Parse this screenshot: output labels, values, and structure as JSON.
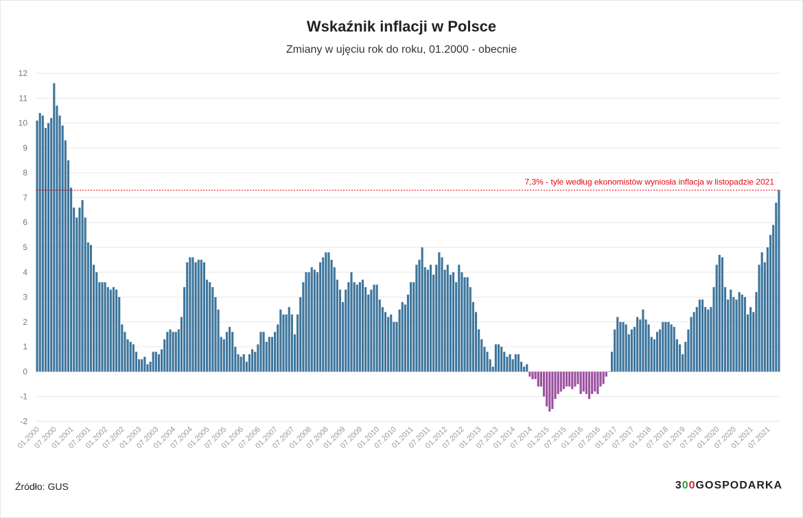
{
  "chart_data": {
    "type": "bar",
    "title": "Wskaźnik inflacji w Polsce",
    "subtitle": "Zmiany w ujęciu rok do roku, 01.2000 - obecnie",
    "ylim": [
      -2,
      12
    ],
    "yticks": [
      "12",
      "11",
      "10",
      "9",
      "8",
      "7",
      "6",
      "5",
      "4",
      "3",
      "2",
      "1",
      "0",
      "-1",
      "-2"
    ],
    "start_year": 2000,
    "start_month": 1,
    "x_tick_labels": [
      "01.2000",
      "07.2000",
      "01.2001",
      "07.2001",
      "01.2002",
      "07.2002",
      "01.2003",
      "07.2003",
      "01.2004",
      "07.2004",
      "01.2005",
      "07.2005",
      "01.2006",
      "07.2006",
      "01.2007",
      "07.2007",
      "01.2008",
      "07.2008",
      "01.2009",
      "07.2009",
      "01.2010",
      "07.2010",
      "01.2011",
      "07.2011",
      "01.2012",
      "07.2012",
      "01.2013",
      "07.2013",
      "01.2014",
      "07.2014",
      "01.2015",
      "07.2015",
      "01.2016",
      "07.2016",
      "01.2017",
      "07.2017",
      "01.2018",
      "07.2018",
      "01.2019",
      "07.2019",
      "01.2020",
      "07.2020",
      "01.2021",
      "07.2021"
    ],
    "values": [
      10.1,
      10.4,
      10.3,
      9.8,
      10.0,
      10.2,
      11.6,
      10.7,
      10.3,
      9.9,
      9.3,
      8.5,
      7.4,
      6.6,
      6.2,
      6.6,
      6.9,
      6.2,
      5.2,
      5.1,
      4.3,
      4.0,
      3.6,
      3.6,
      3.6,
      3.4,
      3.3,
      3.4,
      3.3,
      3.0,
      1.9,
      1.6,
      1.3,
      1.2,
      1.1,
      0.8,
      0.5,
      0.5,
      0.6,
      0.3,
      0.4,
      0.8,
      0.8,
      0.7,
      0.9,
      1.3,
      1.6,
      1.7,
      1.6,
      1.6,
      1.7,
      2.2,
      3.4,
      4.4,
      4.6,
      4.6,
      4.4,
      4.5,
      4.5,
      4.4,
      3.7,
      3.6,
      3.4,
      3.0,
      2.5,
      1.4,
      1.3,
      1.6,
      1.8,
      1.6,
      1.0,
      0.7,
      0.6,
      0.7,
      0.4,
      0.7,
      0.9,
      0.8,
      1.1,
      1.6,
      1.6,
      1.2,
      1.4,
      1.4,
      1.6,
      1.9,
      2.5,
      2.3,
      2.3,
      2.6,
      2.3,
      1.5,
      2.3,
      3.0,
      3.6,
      4.0,
      4.0,
      4.2,
      4.1,
      4.0,
      4.4,
      4.6,
      4.8,
      4.8,
      4.5,
      4.2,
      3.7,
      3.3,
      2.8,
      3.3,
      3.6,
      4.0,
      3.6,
      3.5,
      3.6,
      3.7,
      3.4,
      3.1,
      3.3,
      3.5,
      3.5,
      2.9,
      2.6,
      2.4,
      2.2,
      2.3,
      2.0,
      2.0,
      2.5,
      2.8,
      2.7,
      3.1,
      3.6,
      3.6,
      4.3,
      4.5,
      5.0,
      4.2,
      4.1,
      4.3,
      3.9,
      4.3,
      4.8,
      4.6,
      4.1,
      4.3,
      3.9,
      4.0,
      3.6,
      4.3,
      4.0,
      3.8,
      3.8,
      3.4,
      2.8,
      2.4,
      1.7,
      1.3,
      1.0,
      0.8,
      0.5,
      0.2,
      1.1,
      1.1,
      1.0,
      0.8,
      0.6,
      0.7,
      0.5,
      0.7,
      0.7,
      0.4,
      0.2,
      0.3,
      -0.2,
      -0.3,
      -0.3,
      -0.6,
      -0.6,
      -1.0,
      -1.4,
      -1.6,
      -1.5,
      -1.1,
      -0.9,
      -0.8,
      -0.7,
      -0.6,
      -0.6,
      -0.7,
      -0.6,
      -0.5,
      -0.9,
      -0.8,
      -0.9,
      -1.1,
      -0.9,
      -0.8,
      -0.9,
      -0.6,
      -0.5,
      -0.2,
      0.0,
      0.8,
      1.7,
      2.2,
      2.0,
      2.0,
      1.9,
      1.5,
      1.7,
      1.8,
      2.2,
      2.1,
      2.5,
      2.1,
      1.9,
      1.4,
      1.3,
      1.6,
      1.7,
      2.0,
      2.0,
      2.0,
      1.9,
      1.8,
      1.3,
      1.1,
      0.7,
      1.2,
      1.7,
      2.2,
      2.4,
      2.6,
      2.9,
      2.9,
      2.6,
      2.5,
      2.6,
      3.4,
      4.3,
      4.7,
      4.6,
      3.4,
      2.9,
      3.3,
      3.0,
      2.9,
      3.2,
      3.1,
      3.0,
      2.3,
      2.6,
      2.4,
      3.2,
      4.3,
      4.8,
      4.4,
      5.0,
      5.5,
      5.9,
      6.8,
      7.3
    ],
    "colors": {
      "positive": "#3d759c",
      "negative": "#9c4f9f",
      "reference": "#e30613",
      "grid": "#e6e6e6",
      "tick": "#999999"
    },
    "reference_line": {
      "value": 7.3,
      "label": "7,3% - tyle według ekonomistów wyniosła inflacja w listopadzie 2021"
    },
    "grid": true
  },
  "footer": {
    "source": "Źródło: GUS",
    "brand_prefix": "3",
    "brand_oo_first": "0",
    "brand_oo_second": "0",
    "brand_suffix": "GOSPODARKA"
  }
}
